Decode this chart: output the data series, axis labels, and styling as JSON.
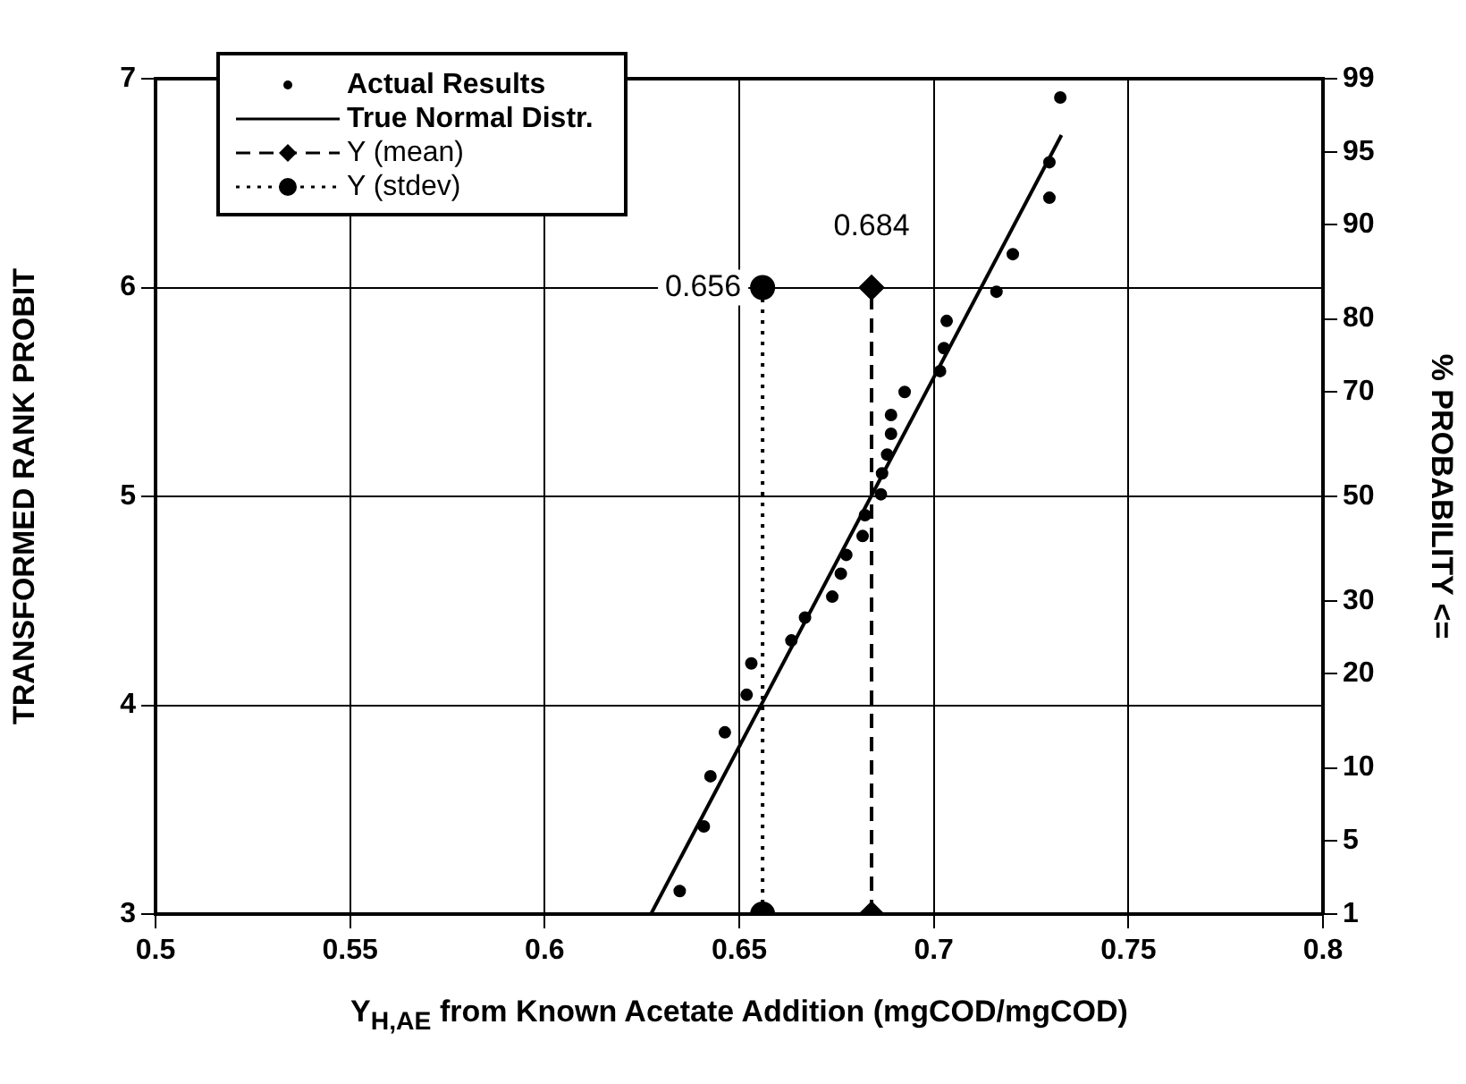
{
  "chart_data": {
    "type": "scatter",
    "xlabel": "Y$_{H,AE}$ from Known Acetate Addition (mgCOD/mgCOD)",
    "ylabel": "TRANSFORMED RANK PROBIT",
    "y2label": "% PROBABILITY <=",
    "xlim": [
      0.5,
      0.8
    ],
    "xticks": [
      0.5,
      0.55,
      0.6,
      0.65,
      0.7,
      0.75,
      0.8
    ],
    "ylim": [
      3,
      7
    ],
    "yticks": [
      3,
      4,
      5,
      6,
      7
    ],
    "y2_categories": [
      "99",
      null,
      null,
      null,
      null,
      null,
      null,
      "95",
      null,
      null,
      null,
      null,
      null,
      null,
      "90",
      null,
      null,
      null,
      null,
      null,
      null,
      null,
      null,
      "80",
      null,
      null,
      null,
      null,
      null,
      null,
      "70",
      null,
      null,
      null,
      null,
      null,
      null,
      null,
      null,
      null,
      "50",
      null,
      null,
      null,
      null,
      null,
      null,
      null,
      null,
      null,
      "30",
      null,
      null,
      null,
      null,
      null,
      null,
      "20",
      null,
      null,
      null,
      null,
      null,
      null,
      null,
      null,
      "10",
      null,
      null,
      null,
      null,
      null,
      null,
      "5",
      null,
      null,
      null,
      null,
      null,
      null,
      "1"
    ],
    "grid": true,
    "legend": "top left",
    "series": [
      {
        "name": "Actual Results",
        "type": "scatter",
        "marker": "circle",
        "color": "#000000",
        "x": [
          0.7325,
          0.7297,
          0.7297,
          0.7203,
          0.7161,
          0.7033,
          0.7026,
          0.7016,
          0.6925,
          0.689,
          0.689,
          0.688,
          0.6867,
          0.6864,
          0.6823,
          0.6817,
          0.6775,
          0.6761,
          0.6739,
          0.6669,
          0.6634,
          0.6531,
          0.6519,
          0.6463,
          0.6426,
          0.6409,
          0.6347
        ],
        "values": [
          6.91,
          6.6,
          6.43,
          6.16,
          5.98,
          5.84,
          5.71,
          5.6,
          5.5,
          5.39,
          5.3,
          5.2,
          5.11,
          5.01,
          4.91,
          4.81,
          4.72,
          4.63,
          4.52,
          4.42,
          4.31,
          4.2,
          4.05,
          3.87,
          3.66,
          3.42,
          3.11
        ]
      },
      {
        "name": "True Normal Distr.",
        "type": "line",
        "marker": "none",
        "line_style": "solid",
        "color": "#000000",
        "x": [
          0.6273,
          0.7328
        ],
        "values": [
          3,
          6.73
        ]
      },
      {
        "name": "Y (mean)",
        "type": "line",
        "marker": "diamond",
        "line_style": "dashed",
        "color": "#000000",
        "x": [
          0.684,
          0.684
        ],
        "values": [
          3,
          6
        ]
      },
      {
        "name": "Y (stdev)",
        "type": "line",
        "marker": "circle",
        "line_style": "dotted",
        "color": "#000000",
        "x": [
          0.656,
          0.656
        ],
        "values": [
          3,
          6
        ]
      }
    ],
    "annotations": [
      {
        "text": "0.684",
        "x": 0.684,
        "y": 6
      },
      {
        "text": "0.656",
        "x": 0.656,
        "y": 6
      }
    ]
  }
}
